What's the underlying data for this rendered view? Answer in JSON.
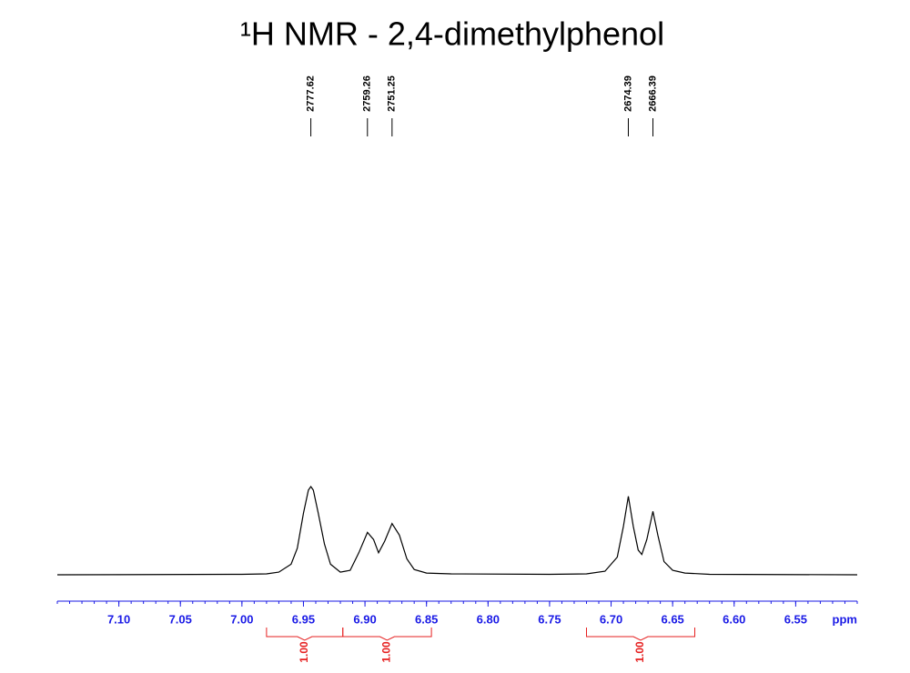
{
  "chart_data": {
    "type": "line",
    "title": "¹H NMR - 2,4-dimethylphenol",
    "x_label": "ppm",
    "x": [
      7.15,
      7.0,
      6.98,
      6.97,
      6.96,
      6.955,
      6.95,
      6.946,
      6.944,
      6.942,
      6.938,
      6.933,
      6.928,
      6.92,
      6.912,
      6.905,
      6.898,
      6.893,
      6.889,
      6.884,
      6.878,
      6.872,
      6.866,
      6.86,
      6.85,
      6.83,
      6.75,
      6.72,
      6.705,
      6.695,
      6.69,
      6.686,
      6.682,
      6.678,
      6.675,
      6.671,
      6.666,
      6.662,
      6.657,
      6.65,
      6.64,
      6.62,
      6.5
    ],
    "values": [
      0,
      0.5,
      1,
      3,
      12,
      30,
      70,
      96,
      100,
      96,
      70,
      35,
      12,
      3,
      5,
      25,
      48,
      40,
      25,
      38,
      58,
      45,
      18,
      6,
      2,
      1,
      0.5,
      1,
      4,
      20,
      55,
      89,
      55,
      28,
      23,
      40,
      72,
      45,
      15,
      5,
      2,
      0.5,
      0
    ],
    "color": "#000000",
    "axis_color": "#1a1ae6",
    "xlim": [
      7.15,
      6.5
    ],
    "ylim": [
      0,
      100
    ],
    "xticks": [
      {
        "value": 7.1,
        "label": "7.10"
      },
      {
        "value": 7.05,
        "label": "7.05"
      },
      {
        "value": 7.0,
        "label": "7.00"
      },
      {
        "value": 6.95,
        "label": "6.95"
      },
      {
        "value": 6.9,
        "label": "6.90"
      },
      {
        "value": 6.85,
        "label": "6.85"
      },
      {
        "value": 6.8,
        "label": "6.80"
      },
      {
        "value": 6.75,
        "label": "6.75"
      },
      {
        "value": 6.7,
        "label": "6.70"
      },
      {
        "value": 6.65,
        "label": "6.65"
      },
      {
        "value": 6.6,
        "label": "6.60"
      },
      {
        "value": 6.55,
        "label": "6.55"
      }
    ],
    "minor_tick_step": 0.01,
    "peaks": {
      "x": [
        6.944,
        6.898,
        6.878,
        6.686,
        6.666
      ],
      "values": [
        2777.62,
        2759.26,
        2751.25,
        2674.39,
        2666.39
      ]
    },
    "integrals": {
      "color": "#e62020",
      "ranges": [
        [
          6.98,
          6.918
        ],
        [
          6.918,
          6.846
        ],
        [
          6.72,
          6.632
        ]
      ],
      "values": [
        1.0,
        1.0,
        1.0
      ],
      "value_labels": [
        "1.00",
        "1.00",
        "1.00"
      ]
    }
  }
}
